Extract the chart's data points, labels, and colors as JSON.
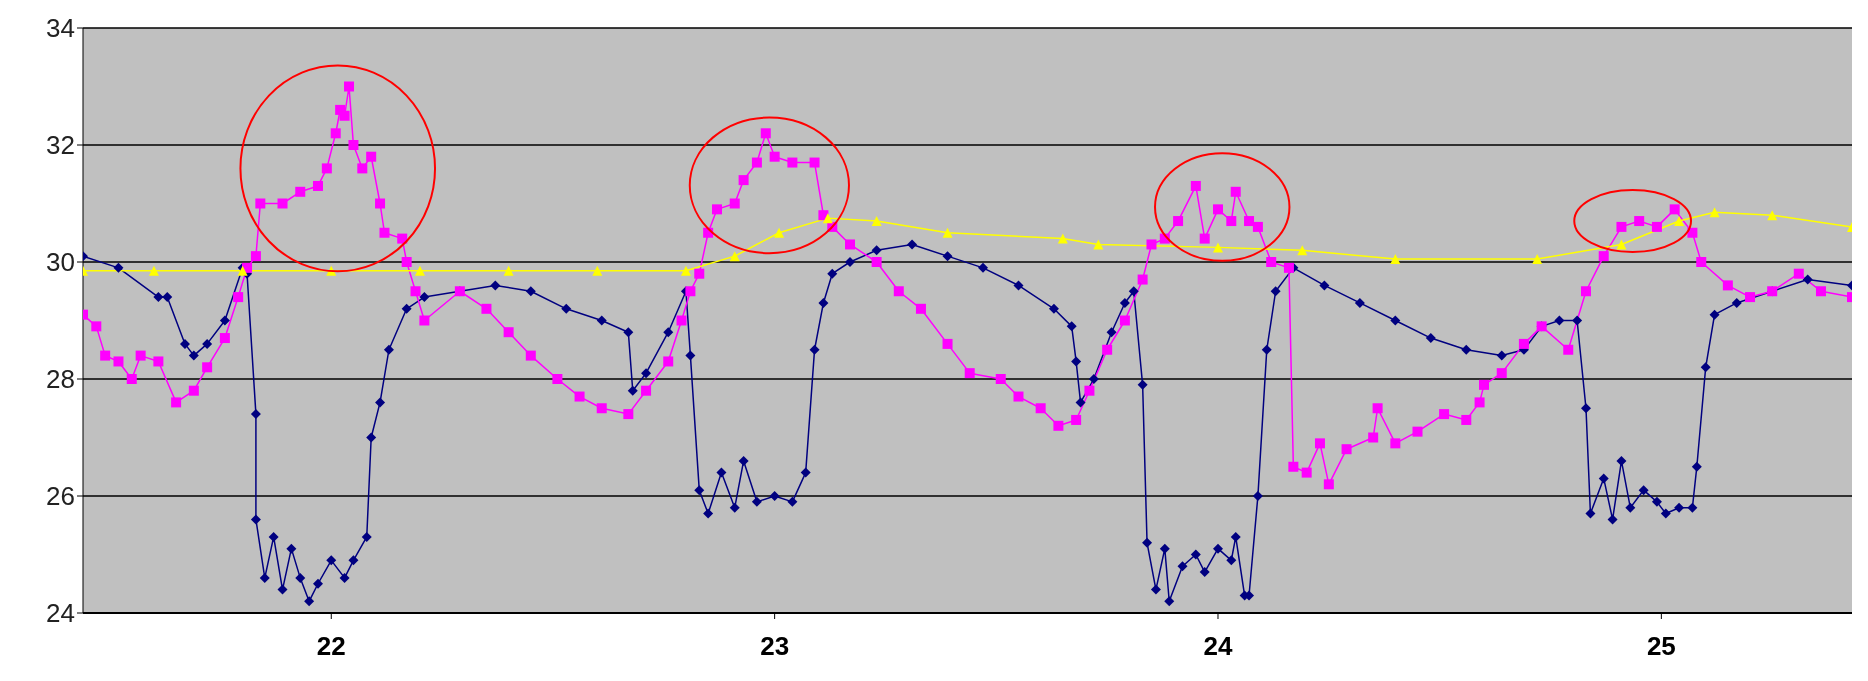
{
  "chart_data": {
    "type": "line",
    "xlim": [
      21.44,
      25.43
    ],
    "xticks": [
      22,
      23,
      24,
      25
    ],
    "ylim": [
      24,
      34
    ],
    "yticks": [
      24,
      26,
      28,
      30,
      32,
      34
    ],
    "grid": "y",
    "series": [
      {
        "color": "#000080",
        "marker": "diamond",
        "x": [
          21.44,
          21.52,
          21.61,
          21.63,
          21.67,
          21.69,
          21.72,
          21.76,
          21.8,
          21.81,
          21.83,
          21.83,
          21.85,
          21.87,
          21.89,
          21.91,
          21.93,
          21.95,
          21.97,
          22.0,
          22.03,
          22.05,
          22.08,
          22.09,
          22.11,
          22.13,
          22.17,
          22.21,
          22.29,
          22.37,
          22.45,
          22.53,
          22.61,
          22.67,
          22.68,
          22.71,
          22.76,
          22.8,
          22.81,
          22.83,
          22.85,
          22.88,
          22.91,
          22.93,
          22.96,
          23.0,
          23.04,
          23.07,
          23.09,
          23.11,
          23.13,
          23.17,
          23.23,
          23.31,
          23.39,
          23.47,
          23.55,
          23.63,
          23.67,
          23.68,
          23.69,
          23.72,
          23.76,
          23.79,
          23.81,
          23.83,
          23.84,
          23.86,
          23.88,
          23.89,
          23.92,
          23.95,
          23.97,
          24.0,
          24.03,
          24.04,
          24.06,
          24.07,
          24.09,
          24.11,
          24.13,
          24.17,
          24.24,
          24.32,
          24.4,
          24.48,
          24.56,
          24.64,
          24.69,
          24.73,
          24.77,
          24.81,
          24.83,
          24.84,
          24.87,
          24.89,
          24.91,
          24.93,
          24.96,
          24.99,
          25.01,
          25.04,
          25.07,
          25.08,
          25.1,
          25.12,
          25.17,
          25.25,
          25.33,
          25.43
        ],
        "values": [
          30.1,
          29.9,
          29.4,
          29.4,
          28.6,
          28.4,
          28.6,
          29.0,
          29.9,
          29.8,
          27.4,
          25.6,
          24.6,
          25.3,
          24.4,
          25.1,
          24.6,
          24.2,
          24.5,
          24.9,
          24.6,
          24.9,
          25.3,
          27.0,
          27.6,
          28.5,
          29.2,
          29.4,
          29.5,
          29.6,
          29.5,
          29.2,
          29.0,
          28.8,
          27.8,
          28.1,
          28.8,
          29.5,
          28.4,
          26.1,
          25.7,
          26.4,
          25.8,
          26.6,
          25.9,
          26.0,
          25.9,
          26.4,
          28.5,
          29.3,
          29.8,
          30.0,
          30.2,
          30.3,
          30.1,
          29.9,
          29.6,
          29.2,
          28.9,
          28.3,
          27.6,
          28.0,
          28.8,
          29.3,
          29.5,
          27.9,
          25.2,
          24.4,
          25.1,
          24.2,
          24.8,
          25.0,
          24.7,
          25.1,
          24.9,
          25.3,
          24.3,
          24.3,
          26.0,
          28.5,
          29.5,
          29.9,
          29.6,
          29.3,
          29.0,
          28.7,
          28.5,
          28.4,
          28.5,
          28.9,
          29.0,
          29.0,
          27.5,
          25.7,
          26.3,
          25.6,
          26.6,
          25.8,
          26.1,
          25.9,
          25.7,
          25.8,
          25.8,
          26.5,
          28.2,
          29.1,
          29.3,
          29.5,
          29.7,
          29.6
        ]
      },
      {
        "color": "#ff00ff",
        "marker": "square",
        "x": [
          21.44,
          21.47,
          21.49,
          21.52,
          21.55,
          21.57,
          21.61,
          21.65,
          21.69,
          21.72,
          21.76,
          21.79,
          21.81,
          21.83,
          21.84,
          21.89,
          21.93,
          21.97,
          21.99,
          22.01,
          22.02,
          22.03,
          22.04,
          22.05,
          22.07,
          22.09,
          22.11,
          22.12,
          22.16,
          22.17,
          22.19,
          22.21,
          22.29,
          22.35,
          22.4,
          22.45,
          22.51,
          22.56,
          22.61,
          22.67,
          22.71,
          22.76,
          22.79,
          22.81,
          22.83,
          22.85,
          22.87,
          22.91,
          22.93,
          22.96,
          22.98,
          23.0,
          23.04,
          23.09,
          23.11,
          23.13,
          23.17,
          23.23,
          23.28,
          23.33,
          23.39,
          23.44,
          23.51,
          23.55,
          23.6,
          23.64,
          23.68,
          23.71,
          23.75,
          23.79,
          23.83,
          23.85,
          23.88,
          23.91,
          23.95,
          23.97,
          24.0,
          24.03,
          24.04,
          24.07,
          24.09,
          24.12,
          24.16,
          24.17,
          24.2,
          24.23,
          24.25,
          24.29,
          24.35,
          24.36,
          24.4,
          24.45,
          24.51,
          24.56,
          24.59,
          24.6,
          24.64,
          24.69,
          24.73,
          24.79,
          24.83,
          24.87,
          24.91,
          24.95,
          24.99,
          25.03,
          25.07,
          25.09,
          25.15,
          25.2,
          25.25,
          25.31,
          25.36,
          25.43
        ],
        "values": [
          29.1,
          28.9,
          28.4,
          28.3,
          28.0,
          28.4,
          28.3,
          27.6,
          27.8,
          28.2,
          28.7,
          29.4,
          29.9,
          30.1,
          31.0,
          31.0,
          31.2,
          31.3,
          31.6,
          32.2,
          32.6,
          32.5,
          33.0,
          32.0,
          31.6,
          31.8,
          31.0,
          30.5,
          30.4,
          30.0,
          29.5,
          29.0,
          29.5,
          29.2,
          28.8,
          28.4,
          28.0,
          27.7,
          27.5,
          27.4,
          27.8,
          28.3,
          29.0,
          29.5,
          29.8,
          30.5,
          30.9,
          31.0,
          31.4,
          31.7,
          32.2,
          31.8,
          31.7,
          31.7,
          30.8,
          30.6,
          30.3,
          30.0,
          29.5,
          29.2,
          28.6,
          28.1,
          28.0,
          27.7,
          27.5,
          27.2,
          27.3,
          27.8,
          28.5,
          29.0,
          29.7,
          30.3,
          30.4,
          30.7,
          31.3,
          30.4,
          30.9,
          30.7,
          31.2,
          30.7,
          30.6,
          30.0,
          29.9,
          26.5,
          26.4,
          26.9,
          26.2,
          26.8,
          27.0,
          27.5,
          26.9,
          27.1,
          27.4,
          27.3,
          27.6,
          27.9,
          28.1,
          28.6,
          28.9,
          28.5,
          29.5,
          30.1,
          30.6,
          30.7,
          30.6,
          30.9,
          30.5,
          30.0,
          29.6,
          29.4,
          29.5,
          29.8,
          29.5,
          29.4
        ]
      },
      {
        "color": "#ffff00",
        "marker": "triangle",
        "x": [
          21.44,
          21.6,
          21.8,
          22.0,
          22.2,
          22.4,
          22.6,
          22.8,
          22.91,
          23.01,
          23.12,
          23.23,
          23.39,
          23.65,
          23.73,
          24.0,
          24.19,
          24.4,
          24.72,
          24.91,
          25.04,
          25.12,
          25.25,
          25.43
        ],
        "values": [
          29.85,
          29.85,
          29.85,
          29.85,
          29.85,
          29.85,
          29.85,
          29.85,
          30.1,
          30.5,
          30.75,
          30.7,
          30.5,
          30.4,
          30.3,
          30.25,
          30.2,
          30.05,
          30.05,
          30.3,
          30.7,
          30.85,
          30.8,
          30.6
        ]
      }
    ]
  }
}
